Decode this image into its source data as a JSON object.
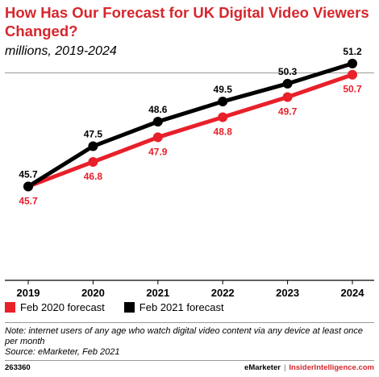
{
  "header": {
    "title": "How Has Our Forecast for UK Digital Video Viewers Changed?",
    "subtitle": "millions, 2019-2024"
  },
  "chart_data": {
    "type": "line",
    "x": [
      "2019",
      "2020",
      "2021",
      "2022",
      "2023",
      "2024"
    ],
    "series": [
      {
        "name": "Feb 2020 forecast",
        "color": "#e8202a",
        "values": [
          45.7,
          46.8,
          47.9,
          48.8,
          49.7,
          50.7
        ]
      },
      {
        "name": "Feb 2021 forecast",
        "color": "#000000",
        "values": [
          45.7,
          47.5,
          48.6,
          49.5,
          50.3,
          51.2
        ]
      }
    ],
    "ylim": [
      41.5,
      51.7
    ],
    "grid": false,
    "legend_position": "bottom-left"
  },
  "note": {
    "text": "Note: internet users of any age who watch digital video content via any device at least once per month",
    "source": "Source: eMarketer, Feb 2021"
  },
  "footer": {
    "id": "263360",
    "brand": "eMarketer",
    "separator": "|",
    "site": "InsiderIntelligence.com"
  }
}
